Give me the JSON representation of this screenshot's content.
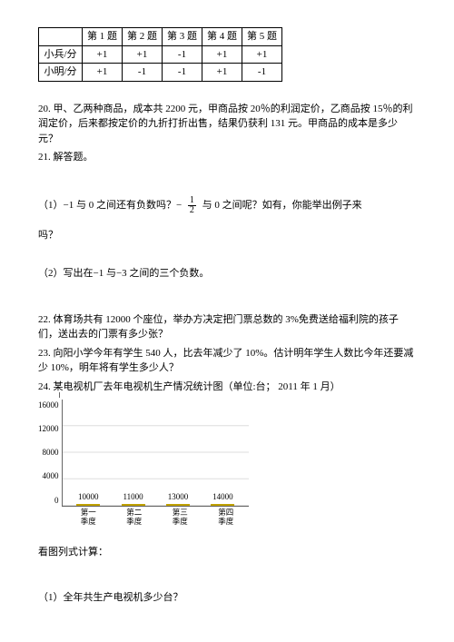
{
  "table": {
    "headers": [
      "",
      "第 1 题",
      "第 2 题",
      "第 3 题",
      "第 4 题",
      "第 5 题"
    ],
    "rows": [
      {
        "label": "小兵/分",
        "cells": [
          "+1",
          "+1",
          "-1",
          "+1",
          "+1"
        ]
      },
      {
        "label": "小明/分",
        "cells": [
          "+1",
          "-1",
          "-1",
          "+1",
          "-1"
        ]
      }
    ]
  },
  "q20": "20. 甲、乙两种商品，成本共 2200 元，甲商品按 20％的利润定价，乙商品按 15％的利润定价，后来都按定价的九折打折出售，结果仍获利 131 元。甲商品的成本是多少元？",
  "q21": "21. 解答题。",
  "q21_1a": "（1）−1 与 0 之间还有负数吗？−",
  "q21_1b": "与 0 之间呢？如有，你能举出例子来",
  "q21_1c": "吗？",
  "frac_n": "1",
  "frac_d": "2",
  "q21_2": "（2）写出在−1 与−3 之间的三个负数。",
  "q22": "22. 体育场共有 12000 个座位，举办方决定把门票总数的 3%免费送给福利院的孩子们，送出去的门票有多少张？",
  "q23": "23. 向阳小学今年有学生 540 人，比去年减少了 10%。估计明年学生人数比今年还要减少 10%，明年将有学生多少人？",
  "q24": "24. 某电视机厂去年电视机生产情况统计图（单位:台；  2011 年 1 月）",
  "chart": {
    "y_ticks": [
      "16000",
      "12000",
      "8000",
      "4000",
      "0"
    ],
    "y_max": 16000,
    "bars": [
      {
        "label": "第一\n季度",
        "value": 10000
      },
      {
        "label": "第二\n季度",
        "value": 11000
      },
      {
        "label": "第三\n季度",
        "value": 13000
      },
      {
        "label": "第四\n季度",
        "value": 14000
      }
    ],
    "bar_fill_top": "#fff176",
    "bar_fill_bottom": "#fbc02d",
    "bar_border": "#bfa000"
  },
  "after1": "看图列式计算：",
  "after2": "（1）全年共生产电视机多少台？"
}
